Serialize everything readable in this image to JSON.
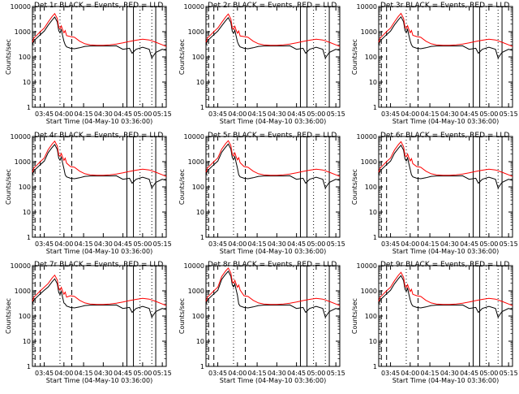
{
  "figure": {
    "start_time": "04-May-10 03:36:00"
  },
  "chart_data": [
    {
      "type": "line",
      "title": "Det 1r BLACK = Events, RED = LLD",
      "xlabel": "Start Time (04-May-10 03:36:00)",
      "ylabel": "Counts/sec",
      "yscale": "log",
      "ylim": [
        1,
        10000
      ],
      "xlim": [
        "03:36",
        "05:18"
      ],
      "xticks": [
        "03:45",
        "04:00",
        "04:15",
        "04:30",
        "04:45",
        "05:00",
        "05:15"
      ],
      "yticks": [
        "1",
        "10",
        "100",
        "1000",
        "10000"
      ],
      "peak_red": 5200,
      "peak_black": 3800,
      "dashed_lines": [
        "03:38",
        "03:42",
        "04:06"
      ],
      "dotted_lines": [
        "03:57",
        "04:58",
        "05:07"
      ],
      "solid_lines": [
        "04:48",
        "04:53",
        "05:10"
      ]
    },
    {
      "type": "line",
      "title": "Det 2r BLACK = Events, RED = LLD",
      "xlabel": "Start Time (04-May-10 03:36:00)",
      "ylabel": "Counts/sec",
      "yscale": "log",
      "ylim": [
        1,
        10000
      ],
      "xlim": [
        "03:36",
        "05:18"
      ],
      "xticks": [
        "03:45",
        "04:00",
        "04:15",
        "04:30",
        "04:45",
        "05:00",
        "05:15"
      ],
      "yticks": [
        "1",
        "10",
        "100",
        "1000",
        "10000"
      ],
      "peak_red": 5000,
      "peak_black": 3600,
      "dashed_lines": [
        "03:38",
        "03:42",
        "04:06"
      ],
      "dotted_lines": [
        "03:57",
        "04:58",
        "05:07"
      ],
      "solid_lines": [
        "04:48",
        "04:53",
        "05:10"
      ]
    },
    {
      "type": "line",
      "title": "Det 3r BLACK = Events, RED = LLD",
      "xlabel": "Start Time (04-May-10 03:36:00)",
      "ylabel": "Counts/sec",
      "yscale": "log",
      "ylim": [
        1,
        10000
      ],
      "xlim": [
        "03:36",
        "05:18"
      ],
      "xticks": [
        "03:45",
        "04:00",
        "04:15",
        "04:30",
        "04:45",
        "05:00",
        "05:15"
      ],
      "yticks": [
        "1",
        "10",
        "100",
        "1000",
        "10000"
      ],
      "peak_red": 5300,
      "peak_black": 3900,
      "dashed_lines": [
        "03:38",
        "03:42",
        "04:06"
      ],
      "dotted_lines": [
        "03:57",
        "04:58",
        "05:07"
      ],
      "solid_lines": [
        "04:48",
        "04:53",
        "05:10"
      ]
    },
    {
      "type": "line",
      "title": "Det 4r BLACK = Events, RED = LLD",
      "xlabel": "Start Time (04-May-10 03:36:00)",
      "ylabel": "Counts/sec",
      "yscale": "log",
      "ylim": [
        1,
        10000
      ],
      "xlim": [
        "03:36",
        "05:18"
      ],
      "xticks": [
        "03:45",
        "04:00",
        "04:15",
        "04:30",
        "04:45",
        "05:00",
        "05:15"
      ],
      "yticks": [
        "1",
        "10",
        "100",
        "1000",
        "10000"
      ],
      "peak_red": 6500,
      "peak_black": 4800,
      "dashed_lines": [
        "03:38",
        "03:42",
        "04:06"
      ],
      "dotted_lines": [
        "03:57",
        "04:58",
        "05:07"
      ],
      "solid_lines": [
        "04:48",
        "04:53",
        "05:10"
      ]
    },
    {
      "type": "line",
      "title": "Det 5r BLACK = Events, RED = LLD",
      "xlabel": "Start Time (04-May-10 03:36:00)",
      "ylabel": "Counts/sec",
      "yscale": "log",
      "ylim": [
        1,
        10000
      ],
      "xlim": [
        "03:36",
        "05:18"
      ],
      "xticks": [
        "03:45",
        "04:00",
        "04:15",
        "04:30",
        "04:45",
        "05:00",
        "05:15"
      ],
      "yticks": [
        "1",
        "10",
        "100",
        "1000",
        "10000"
      ],
      "peak_red": 6800,
      "peak_black": 5000,
      "dashed_lines": [
        "03:38",
        "03:42",
        "04:06"
      ],
      "dotted_lines": [
        "03:57",
        "04:58",
        "05:07"
      ],
      "solid_lines": [
        "04:48",
        "04:53",
        "05:10"
      ]
    },
    {
      "type": "line",
      "title": "Det 6r BLACK = Events, RED = LLD",
      "xlabel": "Start Time (04-May-10 03:36:00)",
      "ylabel": "Counts/sec",
      "yscale": "log",
      "ylim": [
        1,
        10000
      ],
      "xlim": [
        "03:36",
        "05:18"
      ],
      "xticks": [
        "03:45",
        "04:00",
        "04:15",
        "04:30",
        "04:45",
        "05:00",
        "05:15"
      ],
      "yticks": [
        "1",
        "10",
        "100",
        "1000",
        "10000"
      ],
      "peak_red": 6200,
      "peak_black": 4500,
      "dashed_lines": [
        "03:38",
        "03:42",
        "04:06"
      ],
      "dotted_lines": [
        "03:57",
        "04:58",
        "05:07"
      ],
      "solid_lines": [
        "04:48",
        "04:53",
        "05:10"
      ]
    },
    {
      "type": "line",
      "title": "Det 7r BLACK = Events, RED = LLD",
      "xlabel": "Start Time (04-May-10 03:36:00)",
      "ylabel": "Counts/sec",
      "yscale": "log",
      "ylim": [
        1,
        10000
      ],
      "xlim": [
        "03:36",
        "05:18"
      ],
      "xticks": [
        "03:45",
        "04:00",
        "04:15",
        "04:30",
        "04:45",
        "05:00",
        "05:15"
      ],
      "yticks": [
        "1",
        "10",
        "100",
        "1000",
        "10000"
      ],
      "peak_red": 4200,
      "peak_black": 3000,
      "dashed_lines": [
        "03:38",
        "03:42",
        "04:06"
      ],
      "dotted_lines": [
        "03:57",
        "04:58",
        "05:07"
      ],
      "solid_lines": [
        "04:48",
        "04:53",
        "05:10"
      ]
    },
    {
      "type": "line",
      "title": "Det 8r BLACK = Events, RED = LLD",
      "xlabel": "Start Time (04-May-10 03:36:00)",
      "ylabel": "Counts/sec",
      "yscale": "log",
      "ylim": [
        1,
        10000
      ],
      "xlim": [
        "03:36",
        "05:18"
      ],
      "xticks": [
        "03:45",
        "04:00",
        "04:15",
        "04:30",
        "04:45",
        "05:00",
        "05:15"
      ],
      "yticks": [
        "1",
        "10",
        "100",
        "1000",
        "10000"
      ],
      "peak_red": 8000,
      "peak_black": 6000,
      "dashed_lines": [
        "03:38",
        "03:42",
        "04:06"
      ],
      "dotted_lines": [
        "03:57",
        "04:58",
        "05:07"
      ],
      "solid_lines": [
        "04:48",
        "04:53",
        "05:10"
      ]
    },
    {
      "type": "line",
      "title": "Det 9r BLACK = Events, RED = LLD",
      "xlabel": "Start Time (04-May-10 03:36:00)",
      "ylabel": "Counts/sec",
      "yscale": "log",
      "ylim": [
        1,
        10000
      ],
      "xlim": [
        "03:36",
        "05:18"
      ],
      "xticks": [
        "03:45",
        "04:00",
        "04:15",
        "04:30",
        "04:45",
        "05:00",
        "05:15"
      ],
      "yticks": [
        "1",
        "10",
        "100",
        "1000",
        "10000"
      ],
      "peak_red": 5400,
      "peak_black": 4000,
      "dashed_lines": [
        "03:38",
        "03:42",
        "04:06"
      ],
      "dotted_lines": [
        "03:57",
        "04:58",
        "05:07"
      ],
      "solid_lines": [
        "04:48",
        "04:53",
        "05:10"
      ]
    }
  ],
  "colors": {
    "events": "#000000",
    "lld": "#ff0000",
    "background": "#ffffff"
  }
}
